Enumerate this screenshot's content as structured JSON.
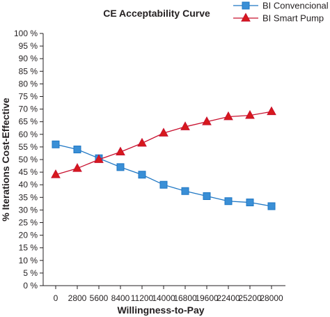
{
  "chart_data": {
    "type": "line",
    "title": "CE Acceptability Curve",
    "xlabel": "Willingness-to-Pay",
    "ylabel": "% Iterations Cost-Effective",
    "categories": [
      "0",
      "2800",
      "5600",
      "8400",
      "11200",
      "14000",
      "16800",
      "19600",
      "22400",
      "25200",
      "28000"
    ],
    "yticks": [
      "0 %",
      "5 %",
      "10 %",
      "15 %",
      "20 %",
      "25 %",
      "30 %",
      "35 %",
      "40 %",
      "45 %",
      "50 %",
      "55 %",
      "60 %",
      "65 %",
      "70 %",
      "75 %",
      "80 %",
      "85 %",
      "90 %",
      "95 %",
      "100 %"
    ],
    "ylim": [
      0,
      100
    ],
    "grid": false,
    "legend_position": "top-right",
    "series": [
      {
        "name": "BI Convencional",
        "color": "#1f77c4",
        "fill": "#3a8fd6",
        "marker": "square",
        "values": [
          56,
          54,
          50.5,
          47,
          44,
          40,
          37.5,
          35.5,
          33.5,
          33,
          31.5
        ]
      },
      {
        "name": "BI Smart Pump",
        "color": "#c8102e",
        "fill": "#d7191c",
        "marker": "triangle",
        "values": [
          44,
          46.5,
          50,
          53,
          56.5,
          60.5,
          63,
          65,
          67,
          67.5,
          69
        ]
      }
    ]
  }
}
